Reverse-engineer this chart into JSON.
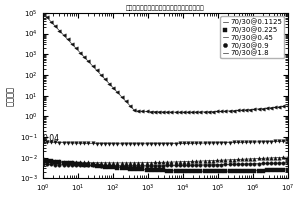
{
  "title": "硅橡胶基多孔介电弹性体复合材料及其制备方法",
  "ylabel": "介电损耗",
  "legend_labels": [
    "70/30@0.1125",
    "70/30@0.225",
    "70/30@0.45",
    "70/30@0.9",
    "70/30@1.8"
  ],
  "markers": [
    "s",
    "o",
    "^",
    "v",
    "<"
  ],
  "annotation": "0.04",
  "xlim_log": [
    0,
    7
  ],
  "ylim_log": [
    -3,
    5
  ],
  "title_fontsize": 4.5,
  "ylabel_fontsize": 6,
  "tick_fontsize": 5,
  "legend_fontsize": 5,
  "markersize": 2.5
}
